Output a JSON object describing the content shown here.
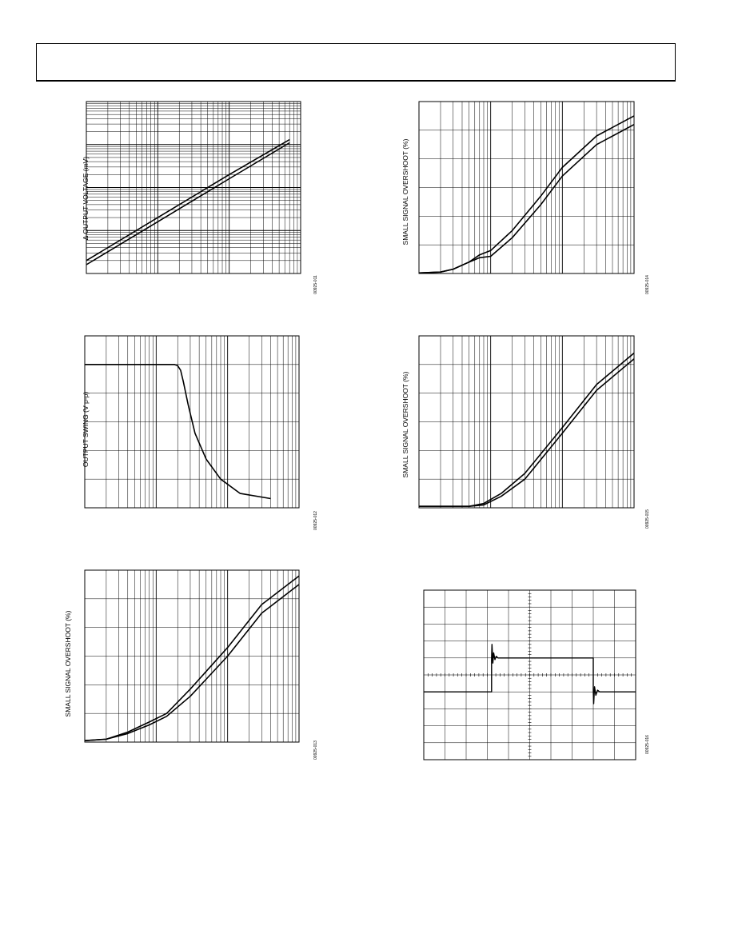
{
  "chart_data": [
    {
      "id": "p1",
      "type": "line",
      "figure_id": "00925-011",
      "ylabel": "Δ OUTPUT VOLTAGE (mV)",
      "xscale": "log",
      "yscale": "log",
      "xlim": [
        0.1,
        100
      ],
      "ylim": [
        0.01,
        100
      ],
      "grid": true,
      "series": [
        {
          "x": [
            0.1,
            1,
            10,
            70
          ],
          "y": [
            0.016,
            0.16,
            1.6,
            11
          ]
        },
        {
          "x": [
            0.1,
            1,
            10,
            70
          ],
          "y": [
            0.02,
            0.2,
            2.0,
            13
          ]
        }
      ]
    },
    {
      "id": "p2",
      "type": "line",
      "figure_id": "00925-012",
      "ylabel": "OUTPUT SWING (V p-p)",
      "xscale": "log",
      "yscale": "linear",
      "xlim": [
        1,
        1000
      ],
      "ylim": [
        0,
        30
      ],
      "grid": true,
      "series": [
        {
          "x": [
            1,
            10,
            18,
            20,
            22,
            24,
            28,
            35,
            50,
            80,
            150,
            400
          ],
          "y": [
            25,
            25,
            25,
            24.8,
            24,
            22,
            18,
            13,
            8.5,
            5,
            2.5,
            1.6
          ]
        }
      ]
    },
    {
      "id": "p3",
      "type": "line",
      "figure_id": "00925-013",
      "ylabel": "SMALL SIGNAL OVERSHOOT (%)",
      "xscale": "log",
      "yscale": "linear",
      "xlim": [
        1,
        1000
      ],
      "ylim": [
        0,
        60
      ],
      "grid": true,
      "series": [
        {
          "x": [
            1,
            2,
            4,
            8,
            14,
            30,
            100,
            300,
            1000
          ],
          "y": [
            0.5,
            1,
            3,
            6,
            9,
            16,
            30,
            45,
            55
          ]
        },
        {
          "x": [
            1,
            2,
            4,
            8,
            14,
            30,
            100,
            300,
            1000
          ],
          "y": [
            0.5,
            1,
            3.5,
            7,
            10,
            18.5,
            33,
            48,
            58
          ]
        }
      ]
    },
    {
      "id": "p4",
      "type": "line",
      "figure_id": "00925-014",
      "ylabel": "SMALL SIGNAL OVERSHOOT (%)",
      "xscale": "log",
      "yscale": "linear",
      "xlim": [
        1,
        1000
      ],
      "ylim": [
        0,
        60
      ],
      "grid": true,
      "series": [
        {
          "x": [
            1,
            2,
            3,
            5,
            7,
            10,
            20,
            50,
            100,
            300,
            1000
          ],
          "y": [
            0.2,
            0.5,
            1.5,
            4,
            6.5,
            8,
            15,
            27,
            37,
            48,
            55
          ]
        },
        {
          "x": [
            1,
            2,
            3,
            5,
            7,
            10,
            20,
            50,
            100,
            300,
            1000
          ],
          "y": [
            0.2,
            0.5,
            1.5,
            4,
            5.5,
            6,
            12.5,
            24,
            34,
            45,
            52
          ]
        }
      ]
    },
    {
      "id": "p5",
      "type": "line",
      "figure_id": "00925-015",
      "ylabel": "SMALL SIGNAL OVERSHOOT (%)",
      "xscale": "log",
      "yscale": "linear",
      "xlim": [
        1,
        1000
      ],
      "ylim": [
        0,
        60
      ],
      "grid": true,
      "series": [
        {
          "x": [
            1,
            3,
            5,
            8,
            14,
            30,
            100,
            300,
            1000
          ],
          "y": [
            0.5,
            0.5,
            0.5,
            1.5,
            5,
            12,
            28,
            43,
            54
          ]
        },
        {
          "x": [
            1,
            3,
            5,
            8,
            14,
            30,
            100,
            300,
            1000
          ],
          "y": [
            0.5,
            0.5,
            0.5,
            1.0,
            4,
            10,
            26,
            41,
            52
          ]
        }
      ]
    },
    {
      "id": "p6",
      "type": "line",
      "figure_id": "00925-016",
      "grid": true,
      "xlim": [
        0,
        10
      ],
      "ylim": [
        -5,
        5
      ],
      "series": [
        {
          "x": [
            0,
            3.2,
            3.2,
            3.22,
            3.26,
            3.3,
            3.36,
            3.42,
            3.5,
            8.0,
            8.0,
            8.02,
            8.06,
            8.12,
            8.2,
            8.3,
            10
          ],
          "y": [
            -1,
            -1,
            1,
            1.8,
            0.7,
            1.3,
            0.9,
            1.1,
            1,
            1,
            -1,
            -1.7,
            -0.7,
            -1.2,
            -0.9,
            -1,
            -1
          ]
        }
      ]
    }
  ]
}
